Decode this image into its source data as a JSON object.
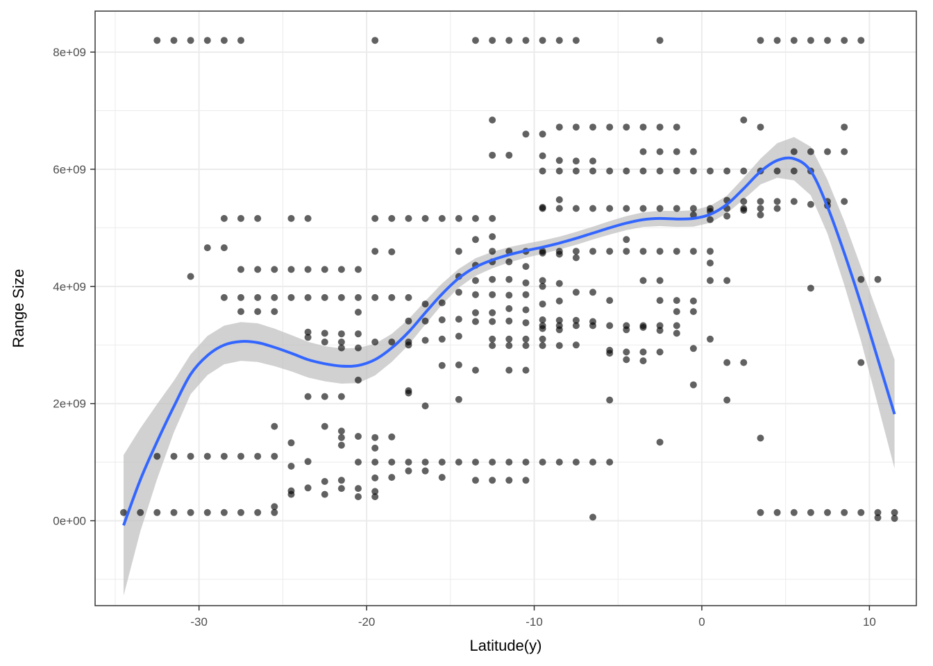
{
  "chart_data": {
    "type": "scatter",
    "title": "",
    "xlabel": "Latitude(y)",
    "ylabel": "Range Size",
    "xlim": [
      -36.2,
      12.8
    ],
    "ylim": [
      -1450000000.0,
      8700000000.0
    ],
    "x_ticks": [
      -30,
      -20,
      -10,
      0,
      10
    ],
    "x_tick_labels": [
      "-30",
      "-20",
      "-10",
      "0",
      "10"
    ],
    "y_ticks": [
      0,
      2000000000,
      4000000000,
      6000000000,
      8000000000
    ],
    "y_tick_labels": [
      "0e+00",
      "2e+09",
      "4e+09",
      "6e+09",
      "8e+09"
    ],
    "grid": true,
    "legend": "none",
    "colors": {
      "points": "#000000",
      "smooth_line": "#3366ff",
      "confidence_band": "#bdbdbd",
      "grid": "#ebebeb",
      "panel_border": "#333333"
    },
    "point_rows": [
      {
        "y": 8200000000.0,
        "x": [
          -32.5,
          -31.5,
          -30.5,
          -29.5,
          -28.5,
          -27.5,
          -19.5,
          -13.5,
          -12.5,
          -11.5,
          -10.5,
          -9.5,
          -8.5,
          -7.5,
          -2.5,
          3.5,
          4.5,
          5.5,
          6.5,
          7.5,
          8.5,
          9.5
        ]
      },
      {
        "y": 6720000000.0,
        "x": [
          -8.5,
          -7.5,
          -6.5,
          -5.5,
          -4.5,
          -3.5,
          -2.5,
          -1.5
        ]
      },
      {
        "y": 6300000000.0,
        "x": [
          -3.5,
          -2.5,
          -1.5,
          -0.5,
          5.5,
          6.5,
          7.5,
          8.5
        ]
      },
      {
        "y": 5970000000.0,
        "x": [
          -9.5,
          -8.5,
          -7.5,
          -6.5,
          -5.5,
          -4.5,
          -3.5,
          -2.5,
          -1.5,
          -0.5,
          0.5,
          1.5,
          2.5,
          3.5,
          4.5,
          5.5,
          6.5
        ]
      },
      {
        "y": 5330000000.0,
        "x": [
          -9.5,
          -8.5,
          -7.5,
          -6.5,
          -5.5,
          -4.5,
          -3.5,
          -2.5,
          -1.5,
          -0.5,
          0.5,
          1.5,
          2.5,
          3.5,
          4.5
        ]
      },
      {
        "y": 5160000000.0,
        "x": [
          -28.5,
          -27.5,
          -26.5,
          -24.5,
          -23.5,
          -19.5,
          -18.5,
          -17.5,
          -16.5,
          -15.5,
          -14.5,
          -13.5,
          -12.5
        ]
      },
      {
        "y": 4600000000.0,
        "x": [
          -12.5,
          -11.5,
          -10.5,
          -9.5,
          -8.5,
          -7.5,
          -6.5,
          -5.5,
          -4.5,
          -3.5,
          -2.5,
          -1.5,
          -0.5
        ]
      },
      {
        "y": 4290000000.0,
        "x": [
          -27.5,
          -26.5,
          -25.5,
          -24.5,
          -23.5,
          -22.5,
          -21.5,
          -20.5
        ]
      },
      {
        "y": 4120000000.0,
        "x": [
          9.5,
          10.5
        ]
      },
      {
        "y": 3810000000.0,
        "x": [
          -28.5,
          -27.5,
          -26.5,
          -25.5,
          -24.5,
          -23.5,
          -22.5,
          -21.5,
          -20.5,
          -19.5,
          -18.5,
          -17.5
        ]
      },
      {
        "y": 3570000000.0,
        "x": [
          -27.5,
          -26.5,
          -25.5
        ]
      },
      {
        "y": 3330000000.0,
        "x": [
          -9.5,
          -8.5,
          -7.5,
          -6.5,
          -5.5,
          -4.5,
          -3.5,
          -2.5,
          -1.5
        ]
      },
      {
        "y": 3050000000.0,
        "x": [
          -22.5,
          -21.5,
          -19.5,
          -18.5,
          -17.5
        ]
      },
      {
        "y": 2990000000.0,
        "x": [
          -12.5,
          -11.5,
          -10.5,
          -9.5,
          -8.5
        ]
      },
      {
        "y": 1100000000.0,
        "x": [
          -32.5,
          -31.5,
          -30.5,
          -29.5,
          -28.5,
          -27.5,
          -26.5,
          -25.5
        ]
      },
      {
        "y": 1000000000.0,
        "x": [
          -20.5,
          -19.5,
          -18.5,
          -17.5,
          -16.5,
          -15.5,
          -14.5,
          -13.5,
          -12.5,
          -11.5,
          -10.5,
          -9.5,
          -8.5,
          -7.5,
          -6.5,
          -5.5
        ]
      },
      {
        "y": 140000000.0,
        "x": [
          -34.5,
          -33.5,
          -32.5,
          -31.5,
          -30.5,
          -29.5,
          -28.5,
          -27.5,
          -26.5,
          -25.5,
          3.5,
          4.5,
          5.5,
          6.5,
          7.5,
          8.5,
          9.5,
          10.5,
          11.5
        ]
      }
    ],
    "points": [
      [
        -30.5,
        4170000000.0
      ],
      [
        -29.5,
        4660000000.0
      ],
      [
        -28.5,
        4660000000.0
      ],
      [
        -25.5,
        1610000000.0
      ],
      [
        -25.5,
        240000000.0
      ],
      [
        -24.5,
        1330000000.0
      ],
      [
        -24.5,
        930000000.0
      ],
      [
        -24.5,
        450000000.0
      ],
      [
        -24.5,
        510000000.0
      ],
      [
        -23.5,
        3220000000.0
      ],
      [
        -23.5,
        3130000000.0
      ],
      [
        -23.5,
        2120000000.0
      ],
      [
        -23.5,
        1010000000.0
      ],
      [
        -23.5,
        560000000.0
      ],
      [
        -22.5,
        3200000000.0
      ],
      [
        -22.5,
        2120000000.0
      ],
      [
        -22.5,
        1610000000.0
      ],
      [
        -22.5,
        670000000.0
      ],
      [
        -22.5,
        450000000.0
      ],
      [
        -21.5,
        3190000000.0
      ],
      [
        -21.5,
        2950000000.0
      ],
      [
        -21.5,
        2120000000.0
      ],
      [
        -21.5,
        1530000000.0
      ],
      [
        -21.5,
        1420000000.0
      ],
      [
        -21.5,
        1290000000.0
      ],
      [
        -21.5,
        690000000.0
      ],
      [
        -21.5,
        550000000.0
      ],
      [
        -20.5,
        3190000000.0
      ],
      [
        -20.5,
        2950000000.0
      ],
      [
        -20.5,
        2400000000.0
      ],
      [
        -20.5,
        1440000000.0
      ],
      [
        -20.5,
        550000000.0
      ],
      [
        -20.5,
        410000000.0
      ],
      [
        -20.5,
        3560000000.0
      ],
      [
        -19.5,
        4600000000.0
      ],
      [
        -19.5,
        1420000000.0
      ],
      [
        -19.5,
        1240000000.0
      ],
      [
        -19.5,
        730000000.0
      ],
      [
        -19.5,
        500000000.0
      ],
      [
        -19.5,
        410000000.0
      ],
      [
        -18.5,
        4590000000.0
      ],
      [
        -18.5,
        1430000000.0
      ],
      [
        -18.5,
        740000000.0
      ],
      [
        -17.5,
        3410000000.0
      ],
      [
        -17.5,
        3000000000.0
      ],
      [
        -17.5,
        2220000000.0
      ],
      [
        -17.5,
        2180000000.0
      ],
      [
        -17.5,
        850000000.0
      ],
      [
        -16.5,
        3700000000.0
      ],
      [
        -16.5,
        3410000000.0
      ],
      [
        -16.5,
        3080000000.0
      ],
      [
        -16.5,
        1960000000.0
      ],
      [
        -16.5,
        850000000.0
      ],
      [
        -15.5,
        3720000000.0
      ],
      [
        -15.5,
        3430000000.0
      ],
      [
        -15.5,
        3100000000.0
      ],
      [
        -15.5,
        2650000000.0
      ],
      [
        -15.5,
        740000000.0
      ],
      [
        -14.5,
        4600000000.0
      ],
      [
        -14.5,
        4170000000.0
      ],
      [
        -14.5,
        3900000000.0
      ],
      [
        -14.5,
        3440000000.0
      ],
      [
        -14.5,
        3150000000.0
      ],
      [
        -14.5,
        2660000000.0
      ],
      [
        -14.5,
        2070000000.0
      ],
      [
        -13.5,
        4800000000.0
      ],
      [
        -13.5,
        4360000000.0
      ],
      [
        -13.5,
        4100000000.0
      ],
      [
        -13.5,
        3860000000.0
      ],
      [
        -13.5,
        3550000000.0
      ],
      [
        -13.5,
        3400000000.0
      ],
      [
        -13.5,
        2570000000.0
      ],
      [
        -13.5,
        690000000.0
      ],
      [
        -12.5,
        6840000000.0
      ],
      [
        -12.5,
        6240000000.0
      ],
      [
        -12.5,
        4850000000.0
      ],
      [
        -12.5,
        4420000000.0
      ],
      [
        -12.5,
        4120000000.0
      ],
      [
        -12.5,
        3860000000.0
      ],
      [
        -12.5,
        3550000000.0
      ],
      [
        -12.5,
        3400000000.0
      ],
      [
        -12.5,
        3100000000.0
      ],
      [
        -12.5,
        690000000.0
      ],
      [
        -11.5,
        6240000000.0
      ],
      [
        -11.5,
        4420000000.0
      ],
      [
        -11.5,
        4120000000.0
      ],
      [
        -11.5,
        3850000000.0
      ],
      [
        -11.5,
        3620000000.0
      ],
      [
        -11.5,
        3410000000.0
      ],
      [
        -11.5,
        3100000000.0
      ],
      [
        -11.5,
        2570000000.0
      ],
      [
        -11.5,
        690000000.0
      ],
      [
        -10.5,
        6600000000.0
      ],
      [
        -10.5,
        4340000000.0
      ],
      [
        -10.5,
        4060000000.0
      ],
      [
        -10.5,
        3860000000.0
      ],
      [
        -10.5,
        3600000000.0
      ],
      [
        -10.5,
        3380000000.0
      ],
      [
        -10.5,
        3100000000.0
      ],
      [
        -10.5,
        2570000000.0
      ],
      [
        -10.5,
        690000000.0
      ],
      [
        -9.5,
        6600000000.0
      ],
      [
        -9.5,
        6230000000.0
      ],
      [
        -9.5,
        5350000000.0
      ],
      [
        -9.5,
        4570000000.0
      ],
      [
        -9.5,
        4100000000.0
      ],
      [
        -9.5,
        4000000000.0
      ],
      [
        -9.5,
        3700000000.0
      ],
      [
        -9.5,
        3430000000.0
      ],
      [
        -9.5,
        3280000000.0
      ],
      [
        -9.5,
        3100000000.0
      ],
      [
        -8.5,
        6150000000.0
      ],
      [
        -8.5,
        5480000000.0
      ],
      [
        -8.5,
        4550000000.0
      ],
      [
        -8.5,
        4050000000.0
      ],
      [
        -8.5,
        3750000000.0
      ],
      [
        -8.5,
        3420000000.0
      ],
      [
        -8.5,
        3260000000.0
      ],
      [
        -7.5,
        6140000000.0
      ],
      [
        -7.5,
        4490000000.0
      ],
      [
        -7.5,
        3900000000.0
      ],
      [
        -7.5,
        3420000000.0
      ],
      [
        -7.5,
        3000000000.0
      ],
      [
        -6.5,
        6140000000.0
      ],
      [
        -6.5,
        3900000000.0
      ],
      [
        -6.5,
        3400000000.0
      ],
      [
        -6.5,
        60000000.0
      ],
      [
        -5.5,
        3760000000.0
      ],
      [
        -5.5,
        2910000000.0
      ],
      [
        -5.5,
        2860000000.0
      ],
      [
        -5.5,
        2060000000.0
      ],
      [
        -4.5,
        4800000000.0
      ],
      [
        -4.5,
        2880000000.0
      ],
      [
        -4.5,
        2750000000.0
      ],
      [
        -4.5,
        3260000000.0
      ],
      [
        -3.5,
        4100000000.0
      ],
      [
        -3.5,
        3300000000.0
      ],
      [
        -3.5,
        2880000000.0
      ],
      [
        -3.5,
        2730000000.0
      ],
      [
        -2.5,
        4100000000.0
      ],
      [
        -2.5,
        3760000000.0
      ],
      [
        -2.5,
        3250000000.0
      ],
      [
        -2.5,
        2880000000.0
      ],
      [
        -2.5,
        1340000000.0
      ],
      [
        -1.5,
        3760000000.0
      ],
      [
        -1.5,
        3570000000.0
      ],
      [
        -1.5,
        3200000000.0
      ],
      [
        -0.5,
        5220000000.0
      ],
      [
        -0.5,
        3750000000.0
      ],
      [
        -0.5,
        3570000000.0
      ],
      [
        -0.5,
        2940000000.0
      ],
      [
        -0.5,
        2320000000.0
      ],
      [
        0.5,
        5280000000.0
      ],
      [
        0.5,
        5140000000.0
      ],
      [
        0.5,
        4600000000.0
      ],
      [
        0.5,
        4400000000.0
      ],
      [
        0.5,
        4100000000.0
      ],
      [
        0.5,
        3100000000.0
      ],
      [
        1.5,
        5470000000.0
      ],
      [
        1.5,
        5200000000.0
      ],
      [
        1.5,
        4100000000.0
      ],
      [
        1.5,
        2700000000.0
      ],
      [
        1.5,
        2060000000.0
      ],
      [
        2.5,
        6840000000.0
      ],
      [
        2.5,
        5450000000.0
      ],
      [
        2.5,
        5300000000.0
      ],
      [
        2.5,
        2700000000.0
      ],
      [
        3.5,
        6720000000.0
      ],
      [
        3.5,
        5450000000.0
      ],
      [
        3.5,
        5220000000.0
      ],
      [
        3.5,
        1410000000.0
      ],
      [
        4.5,
        5450000000.0
      ],
      [
        5.5,
        5450000000.0
      ],
      [
        6.5,
        5400000000.0
      ],
      [
        6.5,
        3970000000.0
      ],
      [
        7.5,
        5450000000.0
      ],
      [
        7.5,
        5380000000.0
      ],
      [
        8.5,
        6720000000.0
      ],
      [
        8.5,
        5450000000.0
      ],
      [
        9.5,
        2700000000.0
      ],
      [
        10.5,
        50000000.0
      ],
      [
        11.5,
        40000000.0
      ]
    ],
    "smooth_curve": [
      [
        -34.5,
        -80000000.0
      ],
      [
        -33.5,
        700000000.0
      ],
      [
        -32.5,
        1350000000.0
      ],
      [
        -31.5,
        1950000000.0
      ],
      [
        -30.5,
        2500000000.0
      ],
      [
        -29.5,
        2820000000.0
      ],
      [
        -28.5,
        3000000000.0
      ],
      [
        -27.5,
        3060000000.0
      ],
      [
        -26.5,
        3040000000.0
      ],
      [
        -25.5,
        2960000000.0
      ],
      [
        -24.5,
        2860000000.0
      ],
      [
        -23.5,
        2750000000.0
      ],
      [
        -22.5,
        2680000000.0
      ],
      [
        -21.5,
        2640000000.0
      ],
      [
        -20.5,
        2650000000.0
      ],
      [
        -19.5,
        2750000000.0
      ],
      [
        -18.5,
        2950000000.0
      ],
      [
        -17.5,
        3220000000.0
      ],
      [
        -16.5,
        3550000000.0
      ],
      [
        -15.5,
        3870000000.0
      ],
      [
        -14.5,
        4140000000.0
      ],
      [
        -13.5,
        4330000000.0
      ],
      [
        -12.5,
        4450000000.0
      ],
      [
        -11.5,
        4540000000.0
      ],
      [
        -10.5,
        4610000000.0
      ],
      [
        -9.5,
        4670000000.0
      ],
      [
        -8.5,
        4740000000.0
      ],
      [
        -7.5,
        4820000000.0
      ],
      [
        -6.5,
        4910000000.0
      ],
      [
        -5.5,
        5000000000.0
      ],
      [
        -4.5,
        5080000000.0
      ],
      [
        -3.5,
        5140000000.0
      ],
      [
        -2.5,
        5160000000.0
      ],
      [
        -1.5,
        5150000000.0
      ],
      [
        -0.5,
        5160000000.0
      ],
      [
        0.5,
        5230000000.0
      ],
      [
        1.5,
        5400000000.0
      ],
      [
        2.5,
        5670000000.0
      ],
      [
        3.5,
        5960000000.0
      ],
      [
        4.5,
        6150000000.0
      ],
      [
        5.5,
        6180000000.0
      ],
      [
        6.5,
        5970000000.0
      ],
      [
        7.5,
        5360000000.0
      ],
      [
        8.5,
        4570000000.0
      ],
      [
        9.5,
        3700000000.0
      ],
      [
        10.5,
        2760000000.0
      ],
      [
        11.5,
        1820000000.0
      ]
    ],
    "band_halfwidth": [
      [
        -34.5,
        1200000000.0
      ],
      [
        -33.5,
        880000000.0
      ],
      [
        -32.5,
        640000000.0
      ],
      [
        -31.5,
        440000000.0
      ],
      [
        -30.5,
        340000000.0
      ],
      [
        -28.5,
        330000000.0
      ],
      [
        -26.5,
        330000000.0
      ],
      [
        -24.5,
        310000000.0
      ],
      [
        -22.5,
        300000000.0
      ],
      [
        -20.5,
        300000000.0
      ],
      [
        -18.5,
        240000000.0
      ],
      [
        -16.5,
        200000000.0
      ],
      [
        -14.5,
        160000000.0
      ],
      [
        -12.5,
        140000000.0
      ],
      [
        -10.5,
        120000000.0
      ],
      [
        -8.5,
        110000000.0
      ],
      [
        -6.5,
        110000000.0
      ],
      [
        -4.5,
        120000000.0
      ],
      [
        -2.5,
        130000000.0
      ],
      [
        -0.5,
        140000000.0
      ],
      [
        1.5,
        150000000.0
      ],
      [
        3.5,
        220000000.0
      ],
      [
        5.5,
        370000000.0
      ],
      [
        7.5,
        460000000.0
      ],
      [
        9.5,
        630000000.0
      ],
      [
        11.5,
        930000000.0
      ]
    ]
  }
}
